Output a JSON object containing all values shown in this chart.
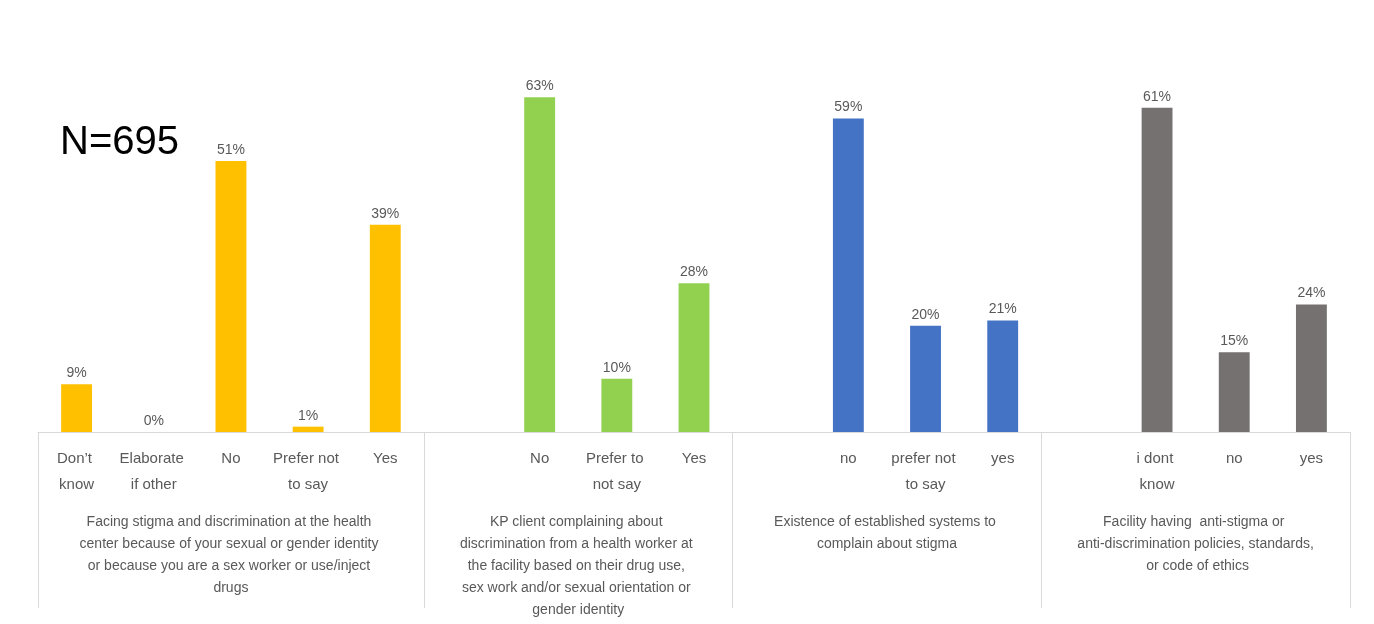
{
  "chart_data": {
    "type": "bar",
    "categories": [
      "Don’t know",
      "Elaborate if other",
      "No",
      "Prefer not to say",
      "Yes",
      null,
      "No",
      "Prefer to not say",
      "Yes",
      null,
      "no",
      "prefer not to say",
      "yes",
      null,
      "i dont know",
      "no",
      "yes"
    ],
    "values": [
      9,
      0,
      51,
      1,
      39,
      null,
      63,
      10,
      28,
      null,
      59,
      20,
      21,
      null,
      61,
      15,
      24
    ],
    "colors": [
      "#ffc000",
      "#ffc000",
      "#ffc000",
      "#ffc000",
      "#ffc000",
      null,
      "#92d050",
      "#92d050",
      "#92d050",
      null,
      "#4472c4",
      "#4472c4",
      "#4472c4",
      null,
      "#767171",
      "#767171",
      "#767171"
    ],
    "value_labels": [
      "9%",
      "0%",
      "51%",
      "1%",
      "39%",
      null,
      "63%",
      "10%",
      "28%",
      null,
      "59%",
      "20%",
      "21%",
      null,
      "61%",
      "15%",
      "24%"
    ],
    "annotations": [
      "N=695",
      "Facing stigma and discrimination at the health center because of your sexual or gender identity or because you are a sex worker or use/inject drugs",
      "KP client complaining about discrimination from a health worker at the facility based on their drug use, sex work and/or sexual orientation or gender identity",
      "Existence of established systems to complain about stigma",
      "Facility having  anti-stigma or anti-discrimination policies, standards, or code of ethics"
    ]
  }
}
